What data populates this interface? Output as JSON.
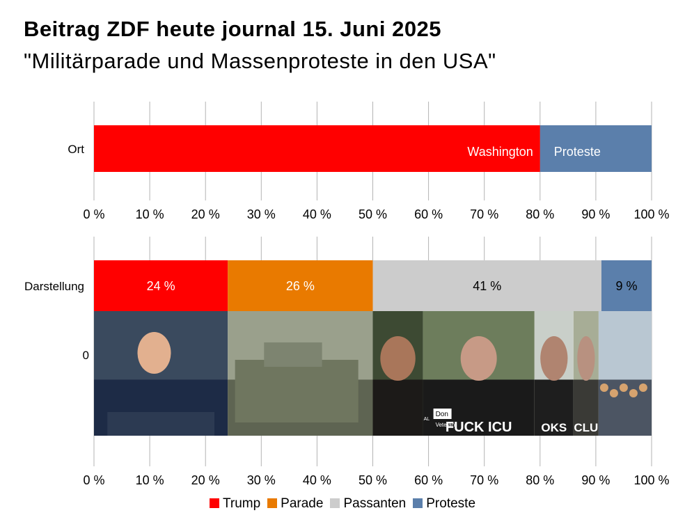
{
  "header": {
    "title": "Beitrag ZDF heute journal 15. Juni 2025",
    "subtitle": "\"Militärparade und Massenproteste in den USA\""
  },
  "colors": {
    "trump": "#ff0000",
    "parade": "#e97a00",
    "passanten": "#cccccc",
    "proteste": "#5b7fab"
  },
  "chart_data": [
    {
      "type": "bar",
      "orientation": "horizontal-stacked",
      "category": "Ort",
      "segments": [
        {
          "label": "Washington",
          "value": 80,
          "color": "#ff0000",
          "text_color": "#ffffff",
          "label_align": "end"
        },
        {
          "label": "Proteste",
          "value": 20,
          "color": "#5b7fab",
          "text_color": "#ffffff",
          "label_align": "start"
        }
      ],
      "xlim": [
        0,
        100
      ],
      "ticks": [
        "0 %",
        "10 %",
        "20 %",
        "30 %",
        "40 %",
        "50 %",
        "60 %",
        "70 %",
        "80 %",
        "90 %",
        "100 %"
      ]
    },
    {
      "type": "bar",
      "orientation": "horizontal-stacked",
      "categories": [
        "Darstellung",
        "0"
      ],
      "segments": [
        {
          "label": "24 %",
          "value": 24,
          "color": "#ff0000",
          "text_color": "#ffffff",
          "series": "Trump"
        },
        {
          "label": "26 %",
          "value": 26,
          "color": "#e97a00",
          "text_color": "#ffffff",
          "series": "Parade"
        },
        {
          "label": "41 %",
          "value": 41,
          "color": "#cccccc",
          "text_color": "#000000",
          "series": "Passanten"
        },
        {
          "label": "9 %",
          "value": 9,
          "color": "#5b7fab",
          "text_color": "#000000",
          "series": "Proteste"
        }
      ],
      "xlim": [
        0,
        100
      ],
      "ticks": [
        "0 %",
        "10 %",
        "20 %",
        "30 %",
        "40 %",
        "50 %",
        "60 %",
        "70 %",
        "80 %",
        "90 %",
        "100 %"
      ],
      "photos": [
        {
          "name": "trump-speech-photo",
          "from": 0,
          "to": 24,
          "caption": ""
        },
        {
          "name": "parade-tank-photo",
          "from": 24,
          "to": 50,
          "caption": ""
        },
        {
          "name": "passant-woman-photo",
          "from": 50,
          "to": 59,
          "caption": ""
        },
        {
          "name": "passant-veteran-photo",
          "from": 59,
          "to": 79,
          "caption": "Don",
          "caption2": "Veteran",
          "shirt_text": "FUCK ICU",
          "badge_text": "AL"
        },
        {
          "name": "passant-glasses-woman-photo",
          "from": 79,
          "to": 86,
          "caption": "",
          "shirt_text": "OKS"
        },
        {
          "name": "passant-older-woman-photo",
          "from": 86,
          "to": 90.5,
          "caption": "",
          "shirt_text": "CLU"
        },
        {
          "name": "protest-crowd-photo",
          "from": 90.5,
          "to": 100,
          "caption": ""
        }
      ]
    }
  ],
  "legend": [
    {
      "label": "Trump",
      "color": "#ff0000"
    },
    {
      "label": "Parade",
      "color": "#e97a00"
    },
    {
      "label": "Passanten",
      "color": "#cccccc"
    },
    {
      "label": "Proteste",
      "color": "#5b7fab"
    }
  ]
}
